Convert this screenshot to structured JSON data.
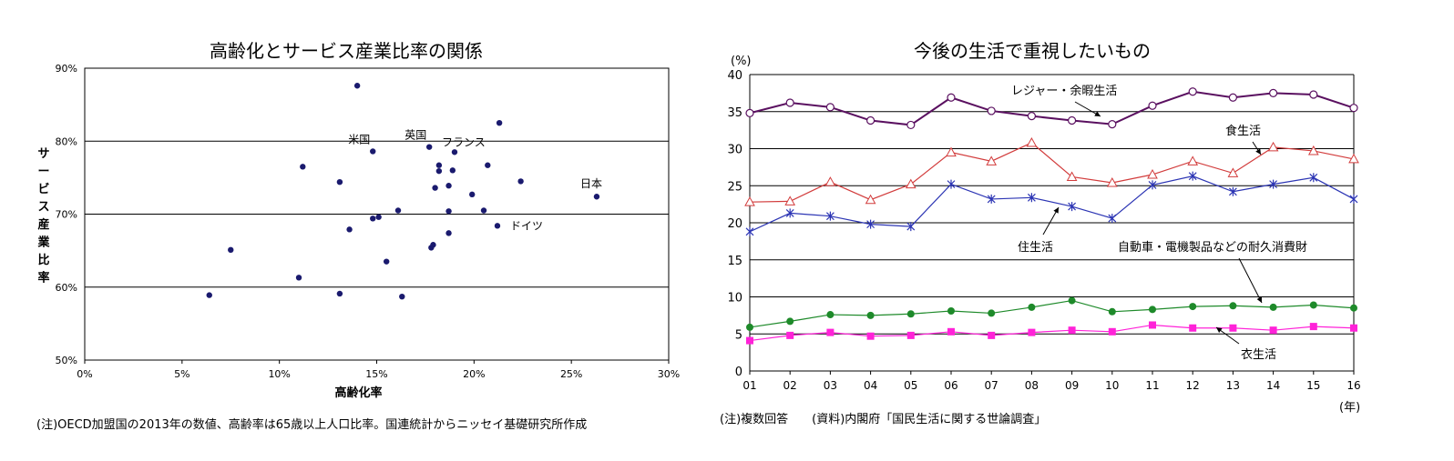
{
  "left_chart": {
    "title": "高齢化とサービス産業比率の関係",
    "note": "(注)OECD加盟国の2013年の数値、高齢率は65歳以上人口比率。国連統計からニッセイ基礎研究所作成"
  },
  "right_chart": {
    "title": "今後の生活で重視したいもの",
    "note": "(注)複数回答　　(資料)内閣府「国民生活に関する世論調査」"
  },
  "chart_data": [
    {
      "type": "scatter",
      "title": "高齢化とサービス産業比率の関係",
      "xlabel": "高齢化率",
      "ylabel": "サービス産業比率",
      "xlim": [
        0,
        30
      ],
      "ylim": [
        50,
        90
      ],
      "x_ticks": [
        "0%",
        "5%",
        "10%",
        "15%",
        "20%",
        "25%",
        "30%"
      ],
      "y_ticks": [
        "50%",
        "60%",
        "70%",
        "80%",
        "90%"
      ],
      "grid": "horizontal",
      "color": "#1a1a6e",
      "points": [
        {
          "x": 14.0,
          "y": 87.6
        },
        {
          "x": 21.3,
          "y": 82.5
        },
        {
          "x": 14.8,
          "y": 78.6,
          "label": "米国"
        },
        {
          "x": 17.7,
          "y": 79.2,
          "label": "英国"
        },
        {
          "x": 19.0,
          "y": 78.5,
          "label": "フランス"
        },
        {
          "x": 11.2,
          "y": 76.5
        },
        {
          "x": 18.2,
          "y": 76.7
        },
        {
          "x": 18.2,
          "y": 75.9
        },
        {
          "x": 18.9,
          "y": 76.0
        },
        {
          "x": 20.7,
          "y": 76.7
        },
        {
          "x": 13.1,
          "y": 74.4
        },
        {
          "x": 18.0,
          "y": 73.6
        },
        {
          "x": 18.7,
          "y": 73.9
        },
        {
          "x": 22.4,
          "y": 74.5
        },
        {
          "x": 19.9,
          "y": 72.7
        },
        {
          "x": 26.3,
          "y": 72.4,
          "label": "日本"
        },
        {
          "x": 16.1,
          "y": 70.5
        },
        {
          "x": 18.7,
          "y": 70.4
        },
        {
          "x": 20.5,
          "y": 70.5
        },
        {
          "x": 14.8,
          "y": 69.4
        },
        {
          "x": 15.1,
          "y": 69.6
        },
        {
          "x": 21.2,
          "y": 68.4,
          "label": "ドイツ"
        },
        {
          "x": 13.6,
          "y": 67.9
        },
        {
          "x": 18.7,
          "y": 67.4
        },
        {
          "x": 17.9,
          "y": 65.8
        },
        {
          "x": 17.8,
          "y": 65.4
        },
        {
          "x": 7.5,
          "y": 65.1
        },
        {
          "x": 15.5,
          "y": 63.5
        },
        {
          "x": 11.0,
          "y": 61.3
        },
        {
          "x": 13.1,
          "y": 59.1
        },
        {
          "x": 6.4,
          "y": 58.9
        },
        {
          "x": 16.3,
          "y": 58.7
        }
      ]
    },
    {
      "type": "line",
      "title": "今後の生活で重視したいもの",
      "ylabel": "(%)",
      "xlabel": "(年)",
      "categories": [
        "01",
        "02",
        "03",
        "04",
        "05",
        "06",
        "07",
        "08",
        "09",
        "10",
        "11",
        "12",
        "13",
        "14",
        "15",
        "16"
      ],
      "ylim": [
        0,
        40
      ],
      "y_ticks": [
        "0",
        "5",
        "10",
        "15",
        "20",
        "25",
        "30",
        "35",
        "40"
      ],
      "grid": "horizontal",
      "series": [
        {
          "name": "レジャー・余暇生活",
          "marker": "circle",
          "color": "#5a1060",
          "values": [
            34.8,
            36.2,
            35.6,
            33.8,
            33.2,
            36.9,
            35.1,
            34.4,
            33.8,
            33.3,
            35.8,
            37.7,
            36.9,
            37.5,
            37.3,
            35.5
          ]
        },
        {
          "name": "食生活",
          "marker": "triangle",
          "color": "#d23c3c",
          "values": [
            22.8,
            22.9,
            25.5,
            23.1,
            25.2,
            29.5,
            28.3,
            30.8,
            26.2,
            25.4,
            26.5,
            28.3,
            26.7,
            30.2,
            29.7,
            28.6
          ]
        },
        {
          "name": "住生活",
          "marker": "asterisk",
          "color": "#2c35b4",
          "values": [
            18.8,
            21.3,
            20.9,
            19.8,
            19.5,
            25.2,
            23.2,
            23.4,
            22.2,
            20.6,
            25.1,
            26.3,
            24.2,
            25.2,
            26.1,
            23.2
          ]
        },
        {
          "name": "自動車・電機製品などの耐久消費財",
          "marker": "dot",
          "color": "#1e8a2a",
          "values": [
            5.9,
            6.7,
            7.6,
            7.5,
            7.7,
            8.1,
            7.8,
            8.6,
            9.5,
            8.0,
            8.3,
            8.7,
            8.8,
            8.6,
            8.9,
            8.5
          ]
        },
        {
          "name": "衣生活",
          "marker": "square",
          "color": "#ff22d8",
          "values": [
            4.1,
            4.8,
            5.2,
            4.7,
            4.8,
            5.3,
            4.8,
            5.2,
            5.5,
            5.3,
            6.2,
            5.8,
            5.8,
            5.5,
            6.0,
            5.8
          ]
        }
      ]
    }
  ]
}
